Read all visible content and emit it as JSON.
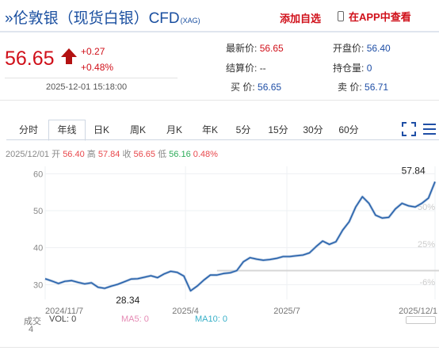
{
  "header": {
    "title_main": "»伦敦银（现货白银）CFD",
    "title_sub": "(XAG)",
    "btn_watch": "添加自选",
    "btn_app": "在APP中查看",
    "price": "56.65",
    "change": "+0.27",
    "change_pct": "+0.48%",
    "datetime": "2025-12-01 15:18:00",
    "arrow_color": "#d0101a"
  },
  "quote": {
    "latest_label": "最新价:",
    "latest_value": "56.65",
    "open_label": "开盘价:",
    "open_value": "56.40",
    "settle_label": "结算价:",
    "settle_value": "--",
    "hold_label": "持仓量:",
    "hold_value": "0",
    "buy_label": "买  价:",
    "buy_value": "56.65",
    "sell_label": "卖  价:",
    "sell_value": "56.71"
  },
  "tabs": [
    "分时",
    "年线",
    "日K",
    "周K",
    "月K",
    "年K",
    "5分",
    "15分",
    "30分",
    "60分"
  ],
  "active_tab": 1,
  "ohlc": {
    "date": "2025/12/01",
    "open_label": "开",
    "open": "56.40",
    "high_label": "高",
    "high": "57.84",
    "close_label": "收",
    "close": "56.65",
    "low_label": "低",
    "low": "56.16",
    "pct": "0.48%"
  },
  "chart_data": {
    "type": "line",
    "y_ticks": [
      "60",
      "50",
      "40",
      "30"
    ],
    "right_ticks": [
      "50%",
      "25%",
      "-6%"
    ],
    "x_labels": [
      "2024/11/7",
      "2025/4",
      "2025/7",
      "2025/12/1"
    ],
    "ylim": [
      26,
      62
    ],
    "annotations": [
      {
        "text": "57.84",
        "x": 58.0,
        "y": 57.84
      },
      {
        "text": "28.34",
        "x": 12.5,
        "y": 28.34
      }
    ],
    "series": [
      {
        "values": [
          31.6,
          31.0,
          30.3,
          30.9,
          31.1,
          30.6,
          30.2,
          30.5,
          29.3,
          29.0,
          29.6,
          30.1,
          30.8,
          31.5,
          31.6,
          32.0,
          32.4,
          31.9,
          32.9,
          33.6,
          33.3,
          32.3,
          28.34,
          29.6,
          31.2,
          32.6,
          32.6,
          33.0,
          33.2,
          33.8,
          36.2,
          37.3,
          36.9,
          36.6,
          36.8,
          37.1,
          37.6,
          37.6,
          37.8,
          38.0,
          38.6,
          40.3,
          41.8,
          40.9,
          41.6,
          44.7,
          47.0,
          51.0,
          53.8,
          52.0,
          48.8,
          48.0,
          48.2,
          50.5,
          52.0,
          51.3,
          51.0,
          52.0,
          53.4,
          57.84
        ]
      }
    ],
    "flat_line": {
      "start": 26,
      "end": 60,
      "y": 33.8
    },
    "grid": true
  },
  "bottom": {
    "vol_label": "成交",
    "vol_text": "VOL: 0",
    "vol_axis": "4",
    "ma5": "MA5: 0",
    "ma10": "MA10: 0"
  }
}
